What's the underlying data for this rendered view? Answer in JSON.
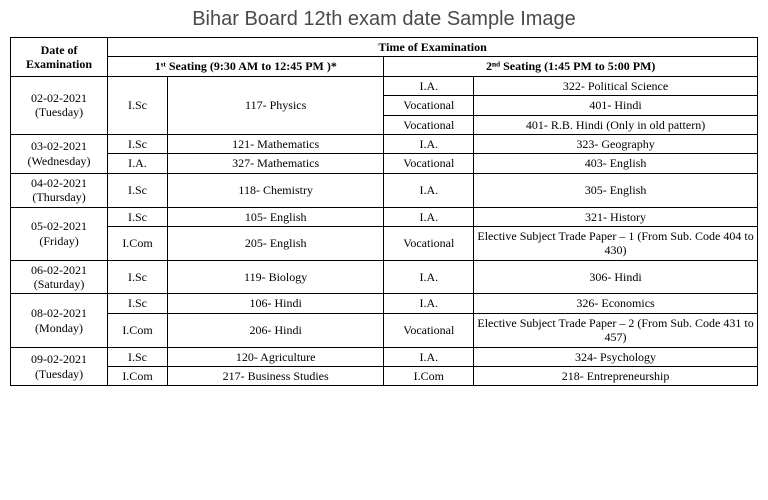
{
  "title": "Bihar Board 12th exam date Sample Image",
  "headers": {
    "date": "Date of Examination",
    "time": "Time of Examination",
    "seat1": "1ˢᵗ Seating (9:30 AM to 12:45 PM )*",
    "seat2": "2ⁿᵈ  Seating (1:45 PM to 5:00 PM)"
  },
  "r1": {
    "date": "02-02-2021 (Tuesday)",
    "s1_stream": "I.Sc",
    "s1_subject": "117- Physics",
    "a": {
      "stream": "I.A.",
      "subject": "322- Political Science"
    },
    "b": {
      "stream": "Vocational",
      "subject": "401- Hindi"
    },
    "c": {
      "stream": "Vocational",
      "subject": "401- R.B. Hindi (Only in old pattern)"
    }
  },
  "r2": {
    "date": "03-02-2021 (Wednesday)",
    "a": {
      "s1s": "I.Sc",
      "s1sub": "121- Mathematics",
      "s2s": "I.A.",
      "s2sub": "323- Geography"
    },
    "b": {
      "s1s": "I.A.",
      "s1sub": "327- Mathematics",
      "s2s": "Vocational",
      "s2sub": "403- English"
    }
  },
  "r3": {
    "date": "04-02-2021 (Thursday)",
    "a": {
      "s1s": "I.Sc",
      "s1sub": "118- Chemistry",
      "s2s": "I.A.",
      "s2sub": "305- English"
    }
  },
  "r4": {
    "date": "05-02-2021 (Friday)",
    "a": {
      "s1s": "I.Sc",
      "s1sub": "105- English",
      "s2s": "I.A.",
      "s2sub": "321- History"
    },
    "b": {
      "s1s": "I.Com",
      "s1sub": "205- English",
      "s2s": "Vocational",
      "s2sub": "Elective Subject Trade Paper – 1 (From Sub. Code 404 to 430)"
    }
  },
  "r5": {
    "date": "06-02-2021 (Saturday)",
    "a": {
      "s1s": "I.Sc",
      "s1sub": "119- Biology",
      "s2s": "I.A.",
      "s2sub": "306- Hindi"
    }
  },
  "r6": {
    "date": "08-02-2021 (Monday)",
    "a": {
      "s1s": "I.Sc",
      "s1sub": "106- Hindi",
      "s2s": "I.A.",
      "s2sub": "326- Economics"
    },
    "b": {
      "s1s": "I.Com",
      "s1sub": "206- Hindi",
      "s2s": "Vocational",
      "s2sub": "Elective Subject Trade Paper – 2 (From Sub. Code 431 to 457)"
    }
  },
  "r7": {
    "date": "09-02-2021 (Tuesday)",
    "a": {
      "s1s": "I.Sc",
      "s1sub": "120- Agriculture",
      "s2s": "I.A.",
      "s2sub": "324- Psychology"
    },
    "b": {
      "s1s": "I.Com",
      "s1sub": "217- Business Studies",
      "s2s": "I.Com",
      "s2sub": "218- Entrepreneurship"
    }
  }
}
